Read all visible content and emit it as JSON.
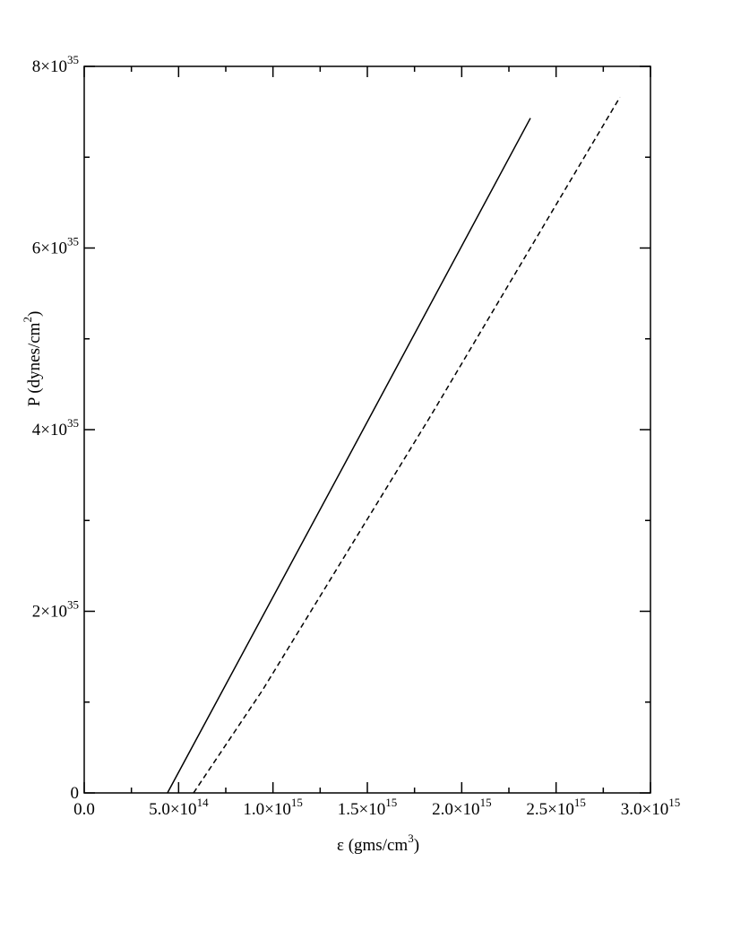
{
  "chart_data": {
    "type": "line",
    "xlabel": "ε  (gms/cm^{3})",
    "ylabel": "P (dynes/cm^{2})",
    "xlim": [
      0,
      3000000000000000.0
    ],
    "ylim": [
      0,
      8e+35
    ],
    "xticks": [
      {
        "value": 0,
        "label": "0.0"
      },
      {
        "value": 500000000000000.0,
        "label": "5.0×10^{14}"
      },
      {
        "value": 1000000000000000.0,
        "label": "1.0×10^{15}"
      },
      {
        "value": 1500000000000000.0,
        "label": "1.5×10^{15}"
      },
      {
        "value": 2000000000000000.0,
        "label": "2.0×10^{15}"
      },
      {
        "value": 2500000000000000.0,
        "label": "2.5×10^{15}"
      },
      {
        "value": 3000000000000000.0,
        "label": "3.0×10^{15}"
      }
    ],
    "yticks": [
      0,
      {
        "value": 2e+35,
        "label": "2×10^{35}"
      },
      {
        "value": 4e+35,
        "label": "4×10^{35}"
      },
      {
        "value": 6e+35,
        "label": "6×10^{35}"
      },
      {
        "value": 8e+35,
        "label": "8×10^{35}"
      }
    ],
    "xticks_minor": [
      250000000000000.0,
      750000000000000.0,
      1250000000000000.0,
      1750000000000000.0,
      2250000000000000.0,
      2750000000000000.0
    ],
    "yticks_minor": [
      1e+35,
      3e+35,
      5e+35,
      7e+35
    ],
    "series": [
      {
        "color": "#000000",
        "dash": "solid",
        "x": [
          441000000000000.0,
          1400000000000000.0,
          2364000000000000.0
        ],
        "values": [
          0,
          3.7e+35,
          7.43e+35
        ]
      },
      {
        "color": "#000000",
        "dash": "dashed",
        "x": [
          579000000000000.0,
          944000000000000.0,
          1841000000000000.0,
          2838000000000000.0
        ],
        "values": [
          0,
          1.13e+35,
          4.17e+35,
          7.66e+35
        ]
      }
    ]
  }
}
